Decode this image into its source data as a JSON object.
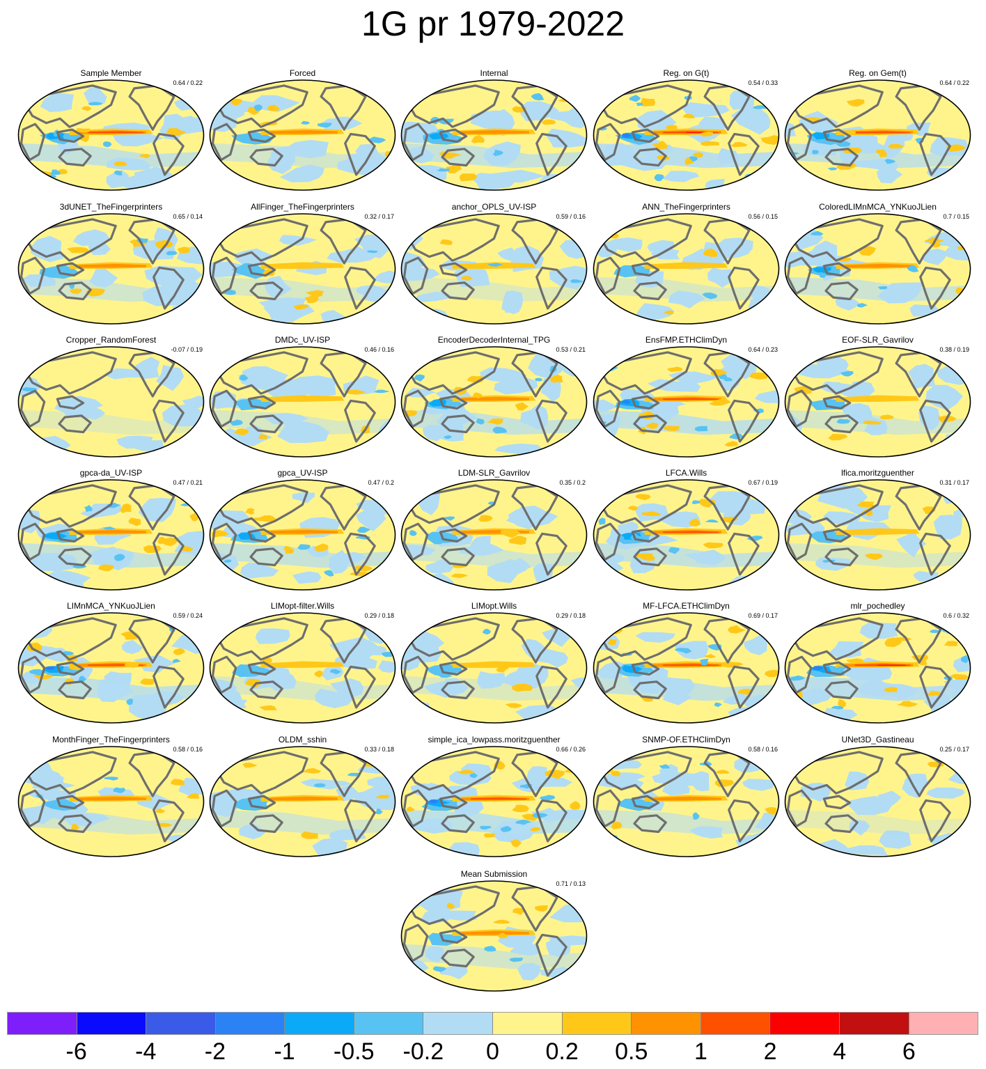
{
  "title": "1G pr 1979-2022",
  "panels": [
    {
      "name": "Sample Member",
      "score": "0.64 / 0.22",
      "intensity": 0.75
    },
    {
      "name": "Forced",
      "score": "",
      "intensity": 0.45
    },
    {
      "name": "Internal",
      "score": "",
      "intensity": 0.7
    },
    {
      "name": "Reg. on G(t)",
      "score": "0.54 / 0.33",
      "intensity": 1.0
    },
    {
      "name": "Reg. on Gem(t)",
      "score": "0.64 / 0.22",
      "intensity": 0.75
    },
    {
      "name": "3dUNET_TheFingerprinters",
      "score": "0.65 / 0.14",
      "intensity": 0.5
    },
    {
      "name": "AllFinger_TheFingerprinters",
      "score": "0.32 / 0.17",
      "intensity": 0.35
    },
    {
      "name": "anchor_OPLS_UV-ISP",
      "score": "0.59 / 0.16",
      "intensity": 0.2
    },
    {
      "name": "ANN_TheFingerprinters",
      "score": "0.56 / 0.15",
      "intensity": 0.3
    },
    {
      "name": "ColoredLIMnMCA_YNKuoJLien",
      "score": "0.7 / 0.15",
      "intensity": 0.6
    },
    {
      "name": "Cropper_RandomForest",
      "score": "-0.07 / 0.19",
      "intensity": 0.1
    },
    {
      "name": "DMDc_UV-ISP",
      "score": "0.46 / 0.16",
      "intensity": 0.35
    },
    {
      "name": "EncoderDecoderInternal_TPG",
      "score": "0.53 / 0.21",
      "intensity": 0.7
    },
    {
      "name": "EnsFMP.ETHClimDyn",
      "score": "0.64 / 0.23",
      "intensity": 0.85
    },
    {
      "name": "EOF-SLR_Gavrilov",
      "score": "0.38 / 0.19",
      "intensity": 0.4
    },
    {
      "name": "gpca-da_UV-ISP",
      "score": "0.47 / 0.21",
      "intensity": 0.7
    },
    {
      "name": "gpca_UV-ISP",
      "score": "0.47 / 0.2",
      "intensity": 0.7
    },
    {
      "name": "LDM-SLR_Gavrilov",
      "score": "0.35 / 0.2",
      "intensity": 0.5
    },
    {
      "name": "LFCA.Wills",
      "score": "0.67 / 0.19",
      "intensity": 0.75
    },
    {
      "name": "lfica.moritzguenther",
      "score": "0.31 / 0.17",
      "intensity": 0.3
    },
    {
      "name": "LIMnMCA_YNKuoJLien",
      "score": "0.59 / 0.24",
      "intensity": 0.85
    },
    {
      "name": "LIMopt-filter.Wills",
      "score": "0.29 / 0.18",
      "intensity": 0.3
    },
    {
      "name": "LIMopt.Wills",
      "score": "0.29 / 0.18",
      "intensity": 0.25
    },
    {
      "name": "MF-LFCA.ETHClimDyn",
      "score": "0.69 / 0.17",
      "intensity": 0.75
    },
    {
      "name": "mlr_pochedley",
      "score": "0.6 / 0.32",
      "intensity": 1.0
    },
    {
      "name": "MonthFinger_TheFingerprinters",
      "score": "0.58 / 0.16",
      "intensity": 0.45
    },
    {
      "name": "OLDM_sshin",
      "score": "0.33 / 0.18",
      "intensity": 0.45
    },
    {
      "name": "simple_ica_lowpass.moritzguenther",
      "score": "0.66 / 0.26",
      "intensity": 0.9
    },
    {
      "name": "SNMP-OF.ETHClimDyn",
      "score": "0.58 / 0.16",
      "intensity": 0.5
    },
    {
      "name": "UNet3D_Gastineau",
      "score": "0.25 / 0.17",
      "intensity": 0.05
    },
    {
      "name": "Mean Submission",
      "score": "0.71 / 0.13",
      "intensity": 0.45
    }
  ],
  "colorbar": {
    "colors": [
      "#7e1efb",
      "#0a0afc",
      "#3a5ae8",
      "#2a82f5",
      "#0aaaf8",
      "#58c2f2",
      "#b2dcf4",
      "#fff48c",
      "#ffc818",
      "#ff9200",
      "#ff5000",
      "#fb0000",
      "#c21010",
      "#feb0b2"
    ],
    "ticks": [
      "-6",
      "-4",
      "-2",
      "-1",
      "-0.5",
      "-0.2",
      "0",
      "0.2",
      "0.5",
      "1",
      "2",
      "4",
      "6"
    ]
  }
}
